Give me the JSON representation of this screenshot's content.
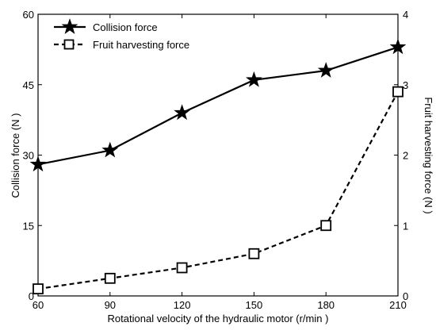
{
  "chart_data": {
    "type": "line",
    "x": [
      60,
      90,
      120,
      150,
      180,
      210
    ],
    "xlim": [
      60,
      210
    ],
    "x_ticks": [
      "60",
      "90",
      "120",
      "150",
      "180",
      "210"
    ],
    "xlabel": "Rotational velocity of the hydraulic motor  (r/min )",
    "left_axis": {
      "label": "Collision force (N )",
      "lim": [
        0,
        60
      ],
      "ticks": [
        "0",
        "15",
        "30",
        "45",
        "60"
      ]
    },
    "right_axis": {
      "label": "Fruit harvesting force  (N )",
      "lim": [
        0,
        4
      ],
      "ticks": [
        "0",
        "1",
        "2",
        "3",
        "4"
      ]
    },
    "series": [
      {
        "name": "Collision force",
        "axis": "left",
        "style": "solid",
        "marker": "star",
        "values": [
          28,
          31,
          39,
          46,
          48,
          53
        ]
      },
      {
        "name": "Fruit harvesting force",
        "axis": "right",
        "style": "dashed",
        "marker": "square",
        "values": [
          0.1,
          0.25,
          0.4,
          0.6,
          1.0,
          2.9
        ]
      }
    ],
    "legend_position": "top-left",
    "grid": false,
    "colors": {
      "line": "#000000",
      "background": "#ffffff"
    }
  }
}
